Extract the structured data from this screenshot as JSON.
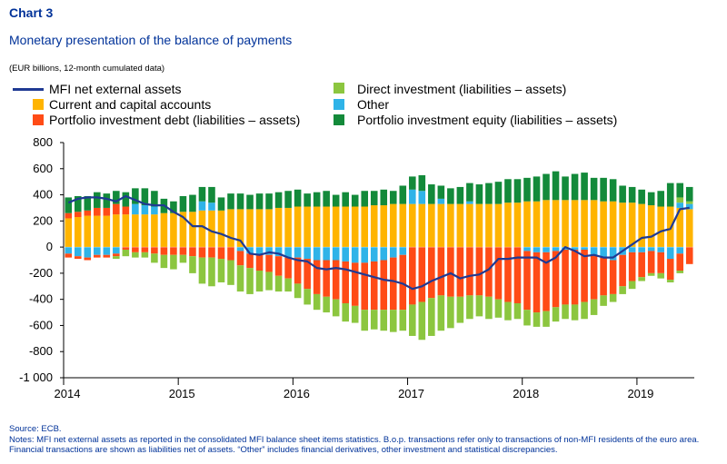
{
  "header": {
    "chart_label": "Chart 3",
    "title": "Monetary presentation of the balance of payments",
    "subtitle": "(EUR billions, 12-month cumulated data)"
  },
  "legend": {
    "items": [
      {
        "key": "mfi",
        "label": "MFI net external assets",
        "color": "#1f3a93",
        "kind": "line"
      },
      {
        "key": "direct",
        "label": "Direct investment (liabilities – assets)",
        "color": "#8cc63f",
        "kind": "bar"
      },
      {
        "key": "current",
        "label": "Current and capital accounts",
        "color": "#ffb400",
        "kind": "bar"
      },
      {
        "key": "other",
        "label": "Other",
        "color": "#2fb3e8",
        "kind": "bar"
      },
      {
        "key": "debt",
        "label": "Portfolio investment debt (liabilities – assets)",
        "color": "#ff4b16",
        "kind": "bar"
      },
      {
        "key": "equity",
        "label": "Portfolio investment equity (liabilities – assets)",
        "color": "#138a3a",
        "kind": "bar"
      }
    ]
  },
  "notes": {
    "source": "Source: ECB.",
    "notes": "Notes: MFI net external assets as reported in the consolidated MFI balance sheet items statistics. B.o.p. transactions refer only to transactions of non-MFI residents of the euro area. Financial transactions are shown as liabilities net of assets. “Other” includes financial derivatives, other investment and statistical discrepancies."
  },
  "chart_data": {
    "type": "bar",
    "stacked": true,
    "ylim": [
      -1000,
      800
    ],
    "yticks": [
      -1000,
      -800,
      -600,
      -400,
      -200,
      0,
      200,
      400,
      600,
      800
    ],
    "ytick_labels": [
      "-1 000",
      "-800",
      "-600",
      "-400",
      "-200",
      "0",
      "200",
      "400",
      "600",
      "800"
    ],
    "x_years": [
      "2014",
      "2015",
      "2016",
      "2017",
      "2018",
      "2019"
    ],
    "x_range": [
      "2014-01",
      "2019-06"
    ],
    "grid": false,
    "months": [
      "2014-01",
      "2014-02",
      "2014-03",
      "2014-04",
      "2014-05",
      "2014-06",
      "2014-07",
      "2014-08",
      "2014-09",
      "2014-10",
      "2014-11",
      "2014-12",
      "2015-01",
      "2015-02",
      "2015-03",
      "2015-04",
      "2015-05",
      "2015-06",
      "2015-07",
      "2015-08",
      "2015-09",
      "2015-10",
      "2015-11",
      "2015-12",
      "2016-01",
      "2016-02",
      "2016-03",
      "2016-04",
      "2016-05",
      "2016-06",
      "2016-07",
      "2016-08",
      "2016-09",
      "2016-10",
      "2016-11",
      "2016-12",
      "2017-01",
      "2017-02",
      "2017-03",
      "2017-04",
      "2017-05",
      "2017-06",
      "2017-07",
      "2017-08",
      "2017-09",
      "2017-10",
      "2017-11",
      "2017-12",
      "2018-01",
      "2018-02",
      "2018-03",
      "2018-04",
      "2018-05",
      "2018-06",
      "2018-07",
      "2018-08",
      "2018-09",
      "2018-10",
      "2018-11",
      "2018-12",
      "2019-01",
      "2019-02",
      "2019-03",
      "2019-04",
      "2019-05",
      "2019-06"
    ],
    "series": [
      {
        "key": "current",
        "name": "Current and capital accounts",
        "color": "#ffb400",
        "values": [
          220,
          230,
          240,
          240,
          240,
          250,
          250,
          250,
          250,
          250,
          260,
          260,
          270,
          270,
          280,
          280,
          280,
          290,
          290,
          290,
          290,
          290,
          300,
          300,
          310,
          310,
          310,
          310,
          310,
          310,
          310,
          310,
          320,
          320,
          330,
          330,
          330,
          330,
          330,
          330,
          330,
          330,
          330,
          330,
          330,
          330,
          340,
          340,
          350,
          350,
          360,
          360,
          360,
          360,
          360,
          360,
          350,
          350,
          340,
          340,
          330,
          320,
          310,
          310,
          300,
          290
        ]
      },
      {
        "key": "other_pos",
        "name": "Other",
        "color": "#2fb3e8",
        "values": [
          0,
          0,
          0,
          0,
          0,
          0,
          0,
          80,
          70,
          60,
          0,
          0,
          0,
          0,
          70,
          60,
          0,
          0,
          0,
          0,
          0,
          0,
          0,
          0,
          0,
          0,
          0,
          0,
          0,
          0,
          0,
          0,
          0,
          0,
          0,
          0,
          110,
          100,
          0,
          40,
          0,
          0,
          20,
          0,
          0,
          0,
          0,
          0,
          0,
          0,
          0,
          0,
          0,
          0,
          0,
          0,
          0,
          0,
          0,
          0,
          0,
          0,
          0,
          0,
          40,
          40
        ]
      },
      {
        "key": "debt_pos",
        "name": "Portfolio investment debt (liabilities – assets)",
        "color": "#ff4b16",
        "values": [
          40,
          40,
          40,
          60,
          60,
          80,
          60,
          0,
          0,
          0,
          0,
          0,
          0,
          0,
          0,
          0,
          0,
          0,
          0,
          0,
          0,
          0,
          0,
          0,
          0,
          0,
          0,
          0,
          0,
          0,
          0,
          0,
          0,
          0,
          0,
          0,
          0,
          0,
          0,
          0,
          0,
          0,
          0,
          0,
          0,
          0,
          0,
          0,
          0,
          0,
          0,
          0,
          0,
          0,
          0,
          0,
          0,
          0,
          0,
          0,
          0,
          0,
          0,
          0,
          0,
          0
        ]
      },
      {
        "key": "direct_pos",
        "name": "Direct investment (liabilities – assets)",
        "color": "#8cc63f",
        "values": [
          0,
          0,
          0,
          0,
          0,
          0,
          0,
          0,
          0,
          0,
          0,
          0,
          0,
          0,
          0,
          0,
          0,
          0,
          0,
          0,
          0,
          0,
          0,
          0,
          0,
          0,
          0,
          0,
          0,
          0,
          0,
          0,
          0,
          0,
          0,
          0,
          0,
          0,
          0,
          0,
          0,
          0,
          0,
          0,
          0,
          0,
          0,
          0,
          0,
          0,
          0,
          0,
          0,
          0,
          0,
          0,
          0,
          0,
          0,
          0,
          0,
          0,
          0,
          0,
          40,
          20
        ]
      },
      {
        "key": "equity_pos",
        "name": "Portfolio investment equity (liabilities – assets)",
        "color": "#138a3a",
        "values": [
          120,
          120,
          110,
          120,
          110,
          100,
          110,
          120,
          130,
          120,
          110,
          90,
          120,
          130,
          110,
          120,
          100,
          120,
          120,
          110,
          120,
          120,
          120,
          130,
          130,
          100,
          110,
          120,
          90,
          110,
          90,
          120,
          110,
          120,
          100,
          140,
          100,
          120,
          150,
          100,
          120,
          130,
          140,
          150,
          160,
          170,
          180,
          180,
          180,
          190,
          200,
          220,
          180,
          200,
          210,
          170,
          180,
          170,
          130,
          120,
          110,
          100,
          120,
          180,
          110,
          110
        ]
      },
      {
        "key": "other_neg",
        "name": "Other",
        "color": "#2fb3e8",
        "values": [
          -50,
          -70,
          -80,
          -60,
          -60,
          -50,
          0,
          0,
          0,
          0,
          0,
          0,
          0,
          0,
          0,
          0,
          0,
          0,
          -30,
          -50,
          -60,
          -60,
          -70,
          -80,
          -80,
          -90,
          -100,
          -100,
          -100,
          -110,
          -120,
          -120,
          -110,
          -100,
          -80,
          -60,
          0,
          0,
          0,
          0,
          0,
          0,
          0,
          0,
          0,
          0,
          0,
          0,
          -30,
          -40,
          -40,
          -30,
          -20,
          -20,
          -20,
          -60,
          -80,
          -100,
          -60,
          -40,
          -40,
          -30,
          -40,
          -90,
          -50,
          0
        ]
      },
      {
        "key": "debt_neg",
        "name": "Portfolio investment debt (liabilities – assets)",
        "color": "#ff4b16",
        "values": [
          -30,
          -20,
          -20,
          -20,
          -20,
          -20,
          -20,
          -40,
          -40,
          -50,
          -60,
          -60,
          -60,
          -70,
          -80,
          -80,
          -90,
          -100,
          -110,
          -110,
          -120,
          -130,
          -150,
          -160,
          -200,
          -230,
          -260,
          -280,
          -300,
          -320,
          -330,
          -360,
          -370,
          -380,
          -400,
          -420,
          -440,
          -420,
          -390,
          -370,
          -380,
          -380,
          -370,
          -370,
          -380,
          -400,
          -420,
          -430,
          -450,
          -460,
          -450,
          -430,
          -420,
          -420,
          -400,
          -340,
          -290,
          -260,
          -240,
          -220,
          -190,
          -170,
          -160,
          -160,
          -130,
          -130
        ]
      },
      {
        "key": "direct_neg",
        "name": "Direct investment (liabilities – assets)",
        "color": "#8cc63f",
        "values": [
          0,
          0,
          0,
          0,
          0,
          -20,
          -50,
          -40,
          -40,
          -70,
          -100,
          -110,
          -60,
          -130,
          -200,
          -220,
          -180,
          -190,
          -200,
          -200,
          -160,
          -140,
          -120,
          -100,
          -110,
          -120,
          -120,
          -120,
          -130,
          -140,
          -130,
          -160,
          -150,
          -160,
          -170,
          -160,
          -240,
          -290,
          -290,
          -270,
          -240,
          -200,
          -180,
          -160,
          -170,
          -140,
          -140,
          -120,
          -120,
          -110,
          -120,
          -110,
          -110,
          -120,
          -130,
          -120,
          -80,
          -60,
          -60,
          -60,
          -30,
          -20,
          -40,
          -20,
          -20,
          0
        ]
      }
    ],
    "line": {
      "key": "mfi",
      "name": "MFI net external assets",
      "color": "#1f3a93",
      "values": [
        340,
        370,
        380,
        380,
        370,
        350,
        390,
        360,
        330,
        320,
        320,
        270,
        230,
        160,
        160,
        120,
        100,
        70,
        50,
        -50,
        -60,
        -40,
        -50,
        -80,
        -100,
        -110,
        -160,
        -170,
        -160,
        -170,
        -190,
        -210,
        -230,
        -250,
        -260,
        -280,
        -320,
        -300,
        -260,
        -230,
        -200,
        -240,
        -220,
        -210,
        -170,
        -90,
        -90,
        -80,
        -80,
        -80,
        -120,
        -80,
        0,
        -30,
        -70,
        -60,
        -80,
        -80,
        -30,
        20,
        70,
        80,
        120,
        140,
        290,
        300
      ]
    }
  }
}
